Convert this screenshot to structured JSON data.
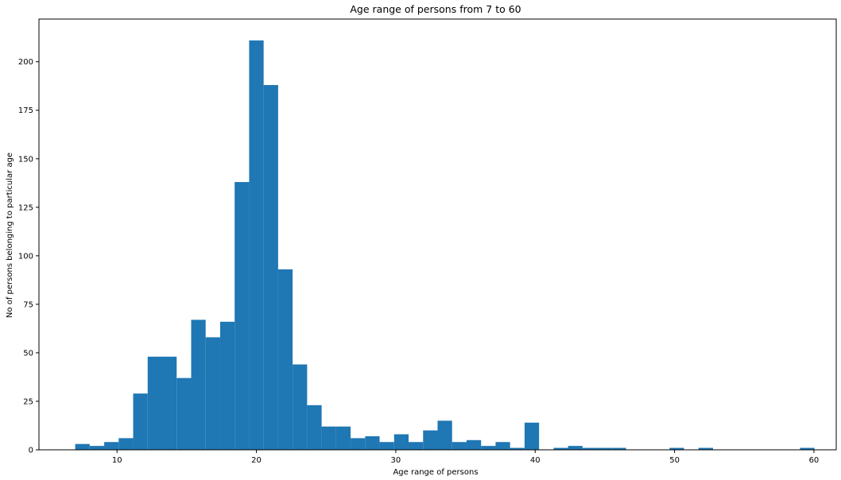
{
  "chart_data": {
    "type": "bar",
    "title": "Age range of persons from 7 to 60",
    "xlabel": "Age range of persons",
    "ylabel": "No of persons belonging to particular age",
    "xlim": [
      4.4,
      61.6
    ],
    "ylim": [
      0,
      222
    ],
    "xticks": [
      10,
      20,
      30,
      40,
      50,
      60
    ],
    "yticks": [
      0,
      25,
      50,
      75,
      100,
      125,
      150,
      175,
      200
    ],
    "bin_start": 7,
    "bin_width": 1.04,
    "values": [
      3,
      2,
      4,
      6,
      29,
      48,
      48,
      37,
      67,
      58,
      66,
      138,
      211,
      188,
      93,
      44,
      23,
      12,
      12,
      6,
      7,
      4,
      8,
      4,
      10,
      15,
      4,
      5,
      2,
      4,
      1,
      14,
      0,
      1,
      2,
      1,
      1,
      1,
      0,
      0,
      0,
      1,
      0,
      1,
      0,
      0,
      0,
      0,
      0,
      0,
      1
    ],
    "bar_color": "#1f77b4",
    "grid": false,
    "legend": "none"
  }
}
